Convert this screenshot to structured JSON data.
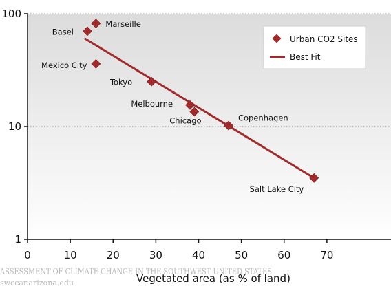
{
  "chart_data": {
    "type": "scatter",
    "xlabel": "Vegetated area (as % of land)",
    "ylabel": "",
    "xlim": [
      0,
      80
    ],
    "ylim": [
      1,
      100
    ],
    "yscale": "log",
    "xticks": [
      0,
      10,
      20,
      30,
      40,
      50,
      60,
      70
    ],
    "yticks": [
      1,
      10,
      100
    ],
    "grid": "horizontal dotted at 10 and 100",
    "legend_position": "top-right",
    "series": [
      {
        "name": "Urban CO2 Sites",
        "marker": "diamond",
        "color": "#a32a2a",
        "points": [
          {
            "label": "Marseille",
            "x": 16,
            "y": 82
          },
          {
            "label": "Basel",
            "x": 14,
            "y": 70
          },
          {
            "label": "Mexico City",
            "x": 16,
            "y": 36
          },
          {
            "label": "Tokyo",
            "x": 29,
            "y": 25
          },
          {
            "label": "Melbourne",
            "x": 38,
            "y": 15.5
          },
          {
            "label": "Chicago",
            "x": 39,
            "y": 13.5
          },
          {
            "label": "Copenhagen",
            "x": 47,
            "y": 10.2
          },
          {
            "label": "Salt Lake City",
            "x": 67,
            "y": 3.5
          }
        ]
      },
      {
        "name": "Best Fit",
        "type": "line",
        "color": "#a32a2a",
        "x": [
          13.5,
          67
        ],
        "y": [
          60,
          3.5
        ]
      }
    ]
  },
  "watermark": {
    "line1": "ASSESSMENT OF CLIMATE CHANGE IN THE SOUTHWEST UNITED STATES",
    "line2": "swccar.arizona.edu"
  }
}
